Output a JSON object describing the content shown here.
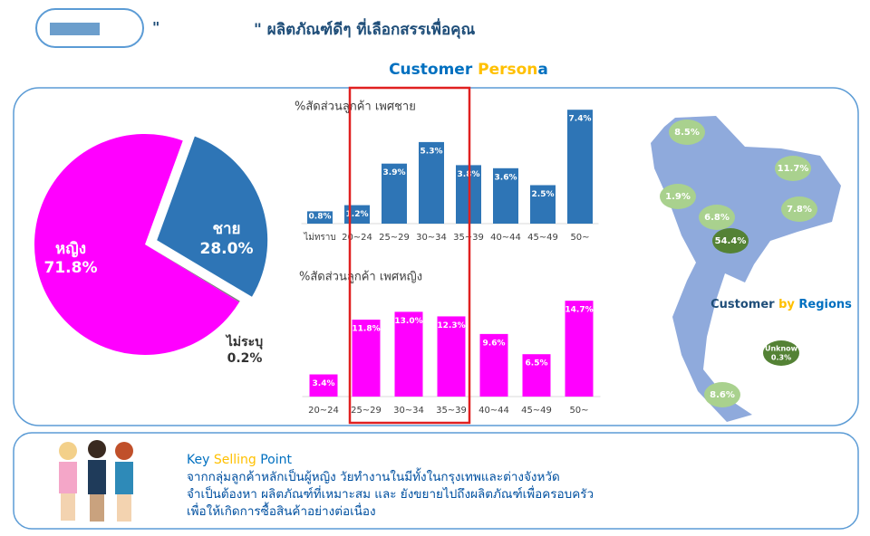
{
  "header": {
    "open_quote": "\"",
    "title": "\" ผลิตภัณฑ์ดีๆ ที่เลือกสรรเพื่อคุณ"
  },
  "section_title": [
    "Customer ",
    "Person",
    "a"
  ],
  "chart_data": [
    {
      "type": "pie",
      "categories": [
        "หญิง",
        "ชาย",
        "ไม่ระบุ"
      ],
      "values": [
        71.8,
        28.0,
        0.2
      ],
      "value_labels": [
        "71.8%",
        "28.0%",
        "0.2%"
      ],
      "colors": [
        "#ff00ff",
        "#2e75b6",
        "#7f7f7f"
      ]
    },
    {
      "type": "bar",
      "title": "%สัดส่วนลูกค้า เพศชาย",
      "categories": [
        "ไม่ทราบ",
        "20~24",
        "25~29",
        "30~34",
        "35~39",
        "40~44",
        "45~49",
        "50~"
      ],
      "values": [
        0.8,
        1.2,
        3.9,
        5.3,
        3.8,
        3.6,
        2.5,
        7.4
      ],
      "value_labels": [
        "0.8%",
        "1.2%",
        "3.9%",
        "5.3%",
        "3.8%",
        "3.6%",
        "2.5%",
        "7.4%"
      ],
      "color": "#2e75b6"
    },
    {
      "type": "bar",
      "title": "%สัดส่วนลูกค้า เพศหญิง",
      "categories": [
        "20~24",
        "25~29",
        "30~34",
        "35~39",
        "40~44",
        "45~49",
        "50~"
      ],
      "values": [
        3.4,
        11.8,
        13.0,
        12.3,
        9.6,
        6.5,
        14.7
      ],
      "value_labels": [
        "3.4%",
        "11.8%",
        "13.0%",
        "12.3%",
        "9.6%",
        "6.5%",
        "14.7%"
      ],
      "color": "#ff00ff"
    },
    {
      "type": "bubble-map",
      "title": [
        "Customer ",
        "by ",
        "Regions"
      ],
      "categories": [
        null,
        null,
        null,
        null,
        null,
        null,
        null,
        "Unknow"
      ],
      "values": [
        8.5,
        11.7,
        1.9,
        7.8,
        6.8,
        54.4,
        8.6,
        0.3
      ],
      "value_labels": [
        "8.5%",
        "11.7%",
        "1.9%",
        "7.8%",
        "6.8%",
        "54.4%",
        "8.6%",
        "0.3%"
      ],
      "color": "#a9d18e",
      "highlight_color": "#548235"
    }
  ],
  "key_selling_point": {
    "title": [
      "Key ",
      "Selling ",
      "Point"
    ],
    "lines": [
      "จากกลุ่มลูกค้าหลักเป็นผู้หญิง วัยทำงานในมีทั้งในกรุงเทพและต่างจังหวัด",
      "จำเป็นต้องหา ผลิตภัณฑ์ที่เหมาะสม และ ยังขยายไปถึงผลิตภัณฑ์เพื่อครอบครัว",
      "เพื่อให้เกิดการซื้อสินค้าอย่างต่อเนื่อง"
    ]
  }
}
